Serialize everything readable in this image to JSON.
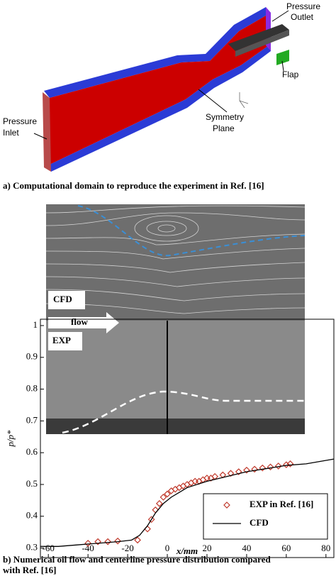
{
  "figure_a": {
    "labels": {
      "pressure_outlet": [
        "Pressure",
        "Outlet"
      ],
      "flap": "Flap",
      "pressure_inlet": [
        "Pressure",
        "Inlet"
      ],
      "symmetry_plane": [
        "Symmetry",
        "Plane"
      ]
    }
  },
  "captions": {
    "a": "a) Computational domain to reproduce the experiment in Ref. [16]",
    "b": [
      "b) Numerical oil flow and centerline pressure distribution compared",
      "with Ref. [16]"
    ]
  },
  "chart_data": {
    "type": "line",
    "xlabel": "x/mm",
    "ylabel": "p/p*",
    "annotations": [
      "CFD",
      "flow",
      "EXP"
    ],
    "xlim": [
      -64,
      84
    ],
    "ylim": [
      0.27,
      1.02
    ],
    "xticks": [
      -60,
      -40,
      -20,
      0,
      20,
      40,
      60,
      80
    ],
    "yticks": [
      0.3,
      0.4,
      0.5,
      0.6,
      0.7,
      0.8,
      0.9,
      1
    ],
    "legend": "lower right",
    "series": [
      {
        "name": "EXP in Ref. [16]",
        "color": "#c0392b",
        "marker": "diamond",
        "x": [
          -40,
          -35,
          -30,
          -25,
          -15,
          -10,
          -8,
          -6,
          -4,
          -2,
          0,
          2,
          4,
          6,
          8,
          10,
          12,
          14,
          16,
          18,
          20,
          22,
          24,
          28,
          32,
          36,
          40,
          44,
          48,
          52,
          56,
          60,
          62
        ],
        "values": [
          0.315,
          0.32,
          0.32,
          0.322,
          0.325,
          0.36,
          0.39,
          0.42,
          0.44,
          0.46,
          0.47,
          0.48,
          0.485,
          0.49,
          0.495,
          0.5,
          0.505,
          0.51,
          0.51,
          0.515,
          0.52,
          0.52,
          0.525,
          0.53,
          0.535,
          0.54,
          0.545,
          0.548,
          0.552,
          0.555,
          0.558,
          0.562,
          0.565
        ]
      },
      {
        "name": "CFD",
        "color": "#000000",
        "marker": "none",
        "x": [
          -64,
          -55,
          -45,
          -35,
          -25,
          -18,
          -14,
          -10,
          -6,
          -2,
          2,
          6,
          10,
          20,
          30,
          40,
          50,
          60,
          70,
          84
        ],
        "values": [
          0.305,
          0.305,
          0.31,
          0.315,
          0.32,
          0.325,
          0.34,
          0.37,
          0.41,
          0.44,
          0.46,
          0.475,
          0.49,
          0.51,
          0.525,
          0.54,
          0.55,
          0.56,
          0.565,
          0.58
        ]
      }
    ]
  }
}
